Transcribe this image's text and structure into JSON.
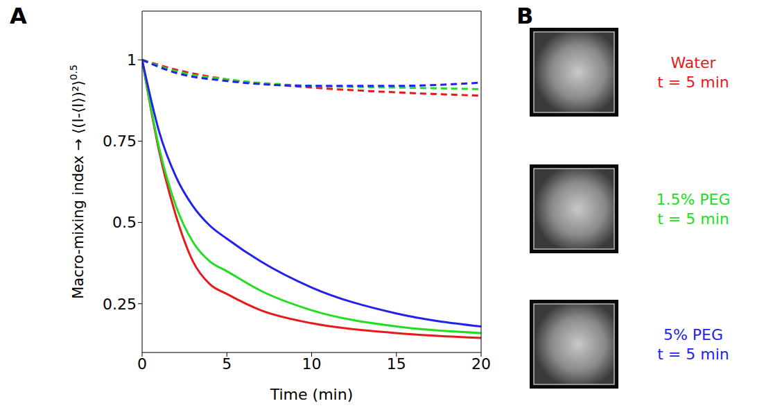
{
  "chart_data": {
    "type": "line",
    "panel": "A",
    "ylabel": {
      "text": "Macro-mixing index → ⟨(I-⟨I⟩)²⟩",
      "superscript": "0.5"
    },
    "xlabel": "Time (min)",
    "xlim": [
      0,
      20
    ],
    "ylim": [
      0.1,
      1.15
    ],
    "xticks": [
      0,
      5,
      10,
      15,
      20
    ],
    "yticks": [
      0.25,
      0.5,
      0.75,
      1
    ],
    "grid": false,
    "series": [
      {
        "name": "Water",
        "color": "#e8191b",
        "line_style": "solid",
        "x": [
          0,
          1,
          2,
          3,
          4,
          5,
          7,
          10,
          15,
          20
        ],
        "values": [
          1,
          0.72,
          0.52,
          0.38,
          0.31,
          0.28,
          0.23,
          0.19,
          0.16,
          0.145
        ]
      },
      {
        "name": "1.5% PEG",
        "color": "#22dd22",
        "line_style": "solid",
        "x": [
          0,
          1,
          2,
          3,
          4,
          5,
          7,
          10,
          15,
          20
        ],
        "values": [
          1,
          0.73,
          0.55,
          0.44,
          0.38,
          0.35,
          0.29,
          0.23,
          0.18,
          0.16
        ]
      },
      {
        "name": "5% PEG",
        "color": "#2222ee",
        "line_style": "solid",
        "x": [
          0,
          1,
          2,
          3,
          4,
          5,
          7,
          10,
          15,
          20
        ],
        "values": [
          1,
          0.78,
          0.64,
          0.55,
          0.49,
          0.45,
          0.38,
          0.3,
          0.22,
          0.18
        ]
      },
      {
        "name": "Water",
        "color": "#e8191b",
        "line_style": "dashed",
        "x": [
          0,
          2,
          5,
          10,
          15,
          20
        ],
        "values": [
          1,
          0.97,
          0.94,
          0.915,
          0.9,
          0.89
        ]
      },
      {
        "name": "1.5% PEG",
        "color": "#22dd22",
        "line_style": "dashed",
        "x": [
          0,
          2,
          5,
          10,
          15,
          20
        ],
        "values": [
          1,
          0.965,
          0.94,
          0.92,
          0.915,
          0.91
        ]
      },
      {
        "name": "5% PEG",
        "color": "#2222ee",
        "line_style": "dashed",
        "x": [
          0,
          2,
          5,
          10,
          15,
          20
        ],
        "values": [
          1,
          0.96,
          0.935,
          0.92,
          0.92,
          0.93
        ]
      }
    ]
  },
  "panel_b": {
    "panel": "B",
    "images": [
      {
        "label": "Water",
        "time": "t = 5 min",
        "color": "#e8191b"
      },
      {
        "label": "1.5% PEG",
        "time": "t = 5 min",
        "color": "#22dd22"
      },
      {
        "label": "5% PEG",
        "time": "t = 5 min",
        "color": "#2222ee"
      }
    ]
  }
}
